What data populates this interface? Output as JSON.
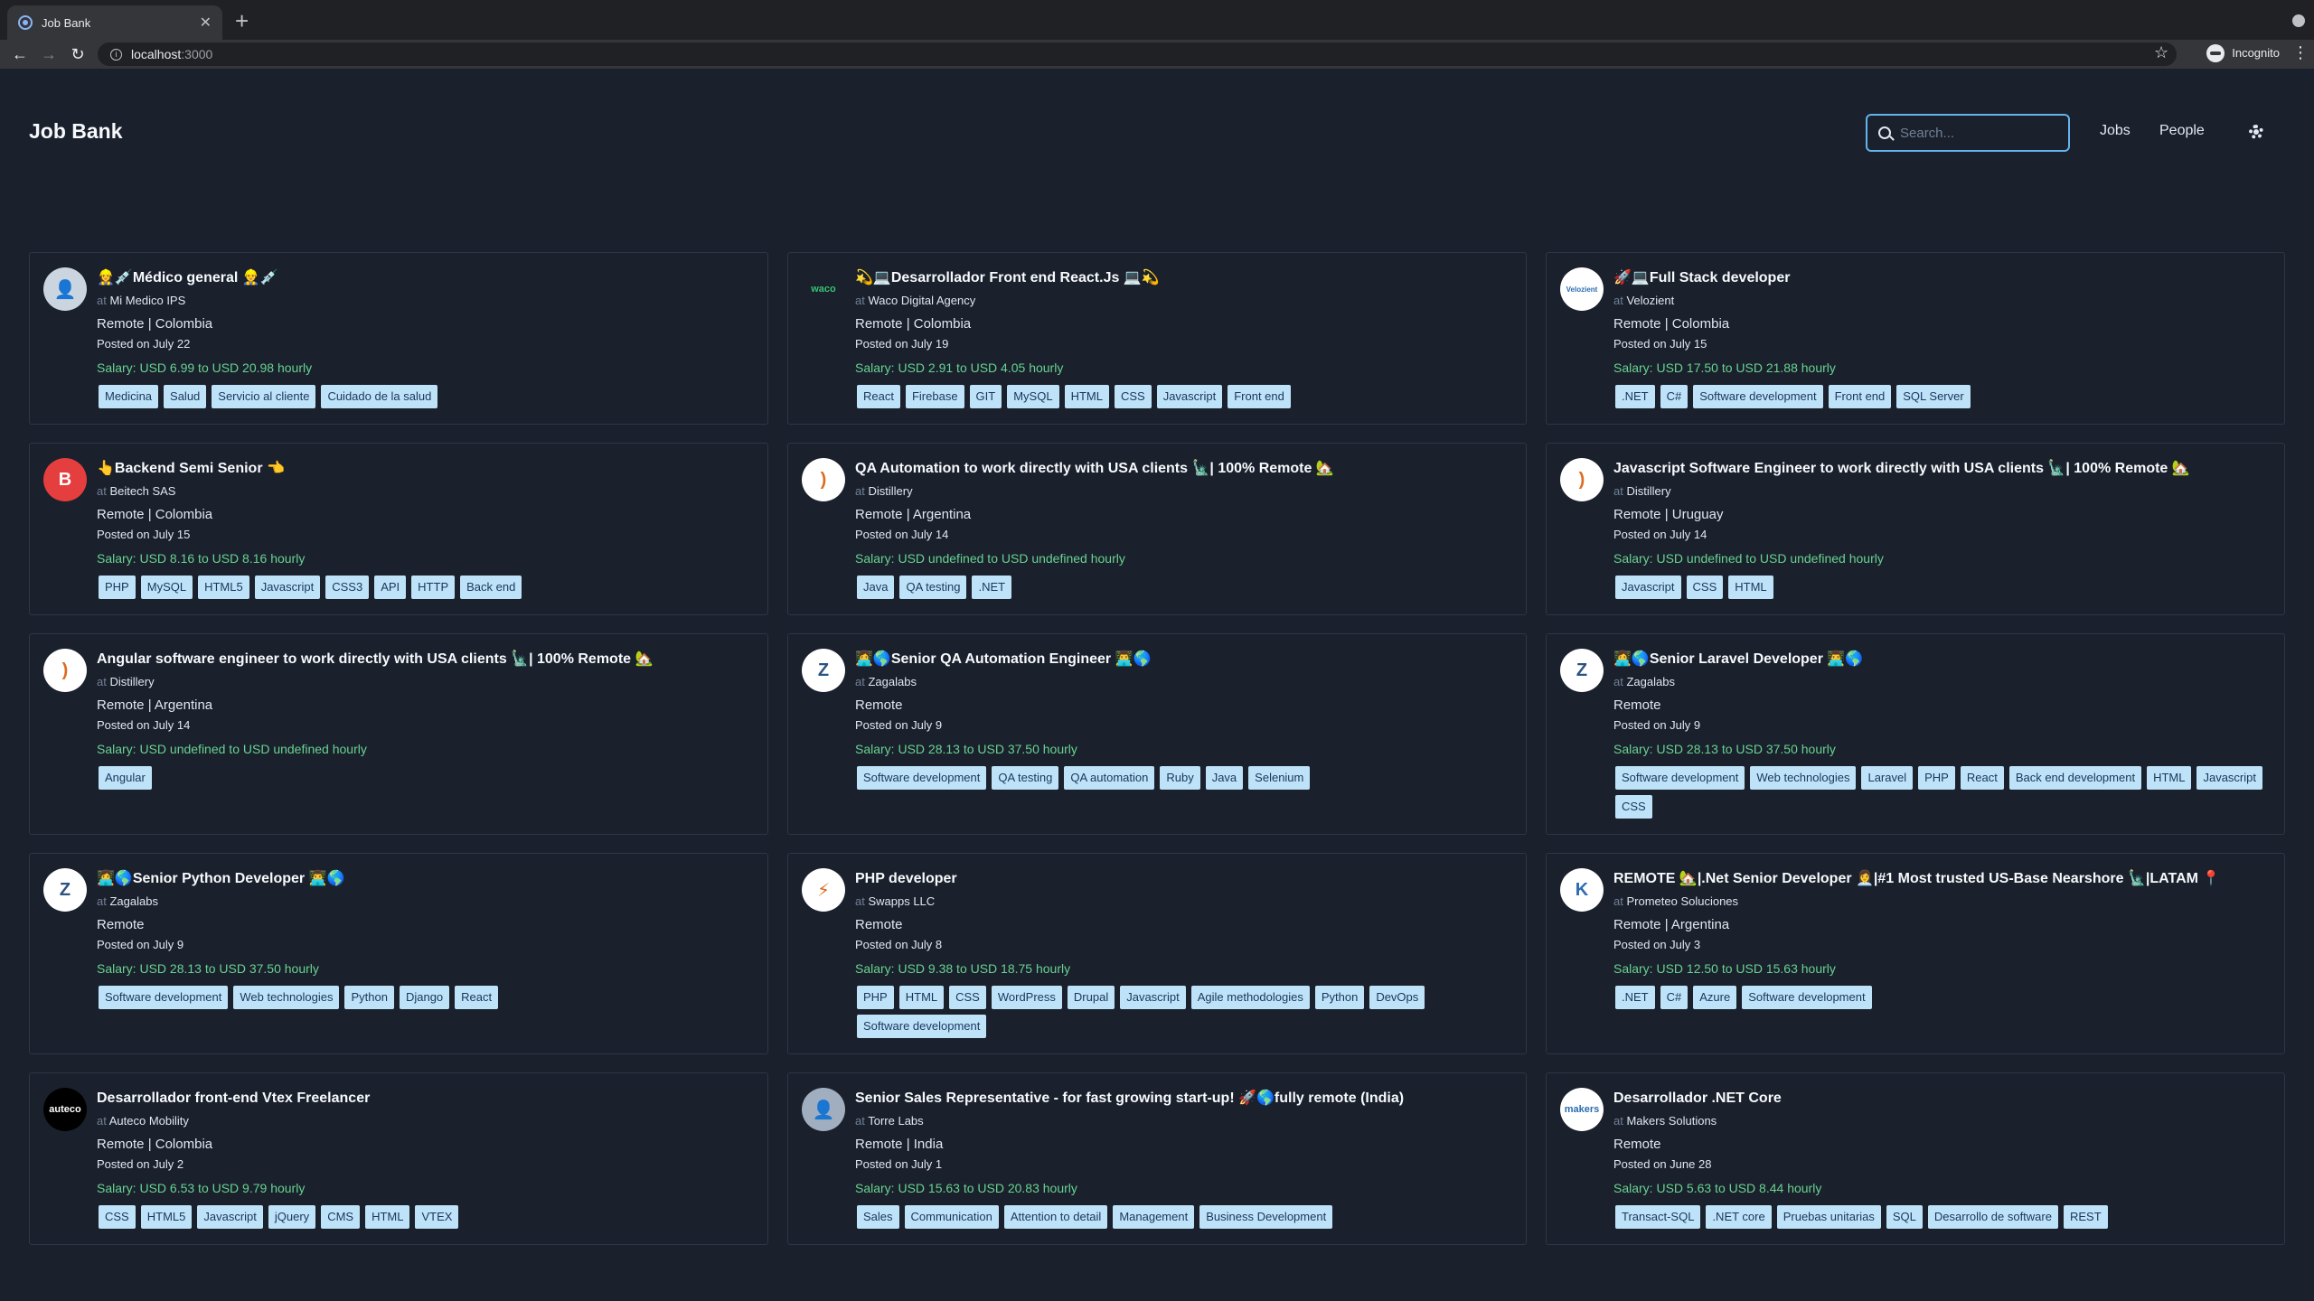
{
  "browser": {
    "tab_title": "Job Bank",
    "url_host": "localhost",
    "url_port": ":3000",
    "profile_label": "Incognito"
  },
  "app": {
    "title": "Job Bank",
    "search_placeholder": "Search...",
    "nav": {
      "jobs": "Jobs",
      "people": "People"
    }
  },
  "at_label": "at",
  "jobs": [
    {
      "title": "👷‍♀️💉Médico general 👷‍♂️💉",
      "company": "Mi Medico IPS",
      "location": "Remote | Colombia",
      "posted": "Posted on July 22",
      "salary": "Salary: USD 6.99 to USD 20.98 hourly",
      "tags": [
        "Medicina",
        "Salud",
        "Servicio al cliente",
        "Cuidado de la salud"
      ],
      "avatar": {
        "text": "👤",
        "bg": "#cbd5e0",
        "fg": "#4a5568"
      }
    },
    {
      "title": "💫💻Desarrollador Front end React.Js 💻💫",
      "company": "Waco Digital Agency",
      "location": "Remote | Colombia",
      "posted": "Posted on July 19",
      "salary": "Salary: USD 2.91 to USD 4.05 hourly",
      "tags": [
        "React",
        "Firebase",
        "GIT",
        "MySQL",
        "HTML",
        "CSS",
        "Javascript",
        "Front end"
      ],
      "avatar": {
        "text": "waco",
        "bg": "#1a202c",
        "fg": "#38c172"
      }
    },
    {
      "title": "🚀💻Full Stack developer",
      "company": "Velozient",
      "location": "Remote | Colombia",
      "posted": "Posted on July 15",
      "salary": "Salary: USD 17.50 to USD 21.88 hourly",
      "tags": [
        ".NET",
        "C#",
        "Software development",
        "Front end",
        "SQL Server"
      ],
      "avatar": {
        "text": "Velozient",
        "bg": "#ffffff",
        "fg": "#2b6cb0"
      }
    },
    {
      "title": "👆Backend Semi Senior 👈",
      "company": "Beitech SAS",
      "location": "Remote | Colombia",
      "posted": "Posted on July 15",
      "salary": "Salary: USD 8.16 to USD 8.16 hourly",
      "tags": [
        "PHP",
        "MySQL",
        "HTML5",
        "Javascript",
        "CSS3",
        "API",
        "HTTP",
        "Back end"
      ],
      "avatar": {
        "text": "B",
        "bg": "#e53e3e",
        "fg": "#ffffff"
      }
    },
    {
      "title": "QA Automation to work directly with USA clients 🗽| 100% Remote 🏡",
      "company": "Distillery",
      "location": "Remote | Argentina",
      "posted": "Posted on July 14",
      "salary": "Salary: USD undefined to USD undefined hourly",
      "tags": [
        "Java",
        "QA testing",
        ".NET"
      ],
      "avatar": {
        "text": ")",
        "bg": "#ffffff",
        "fg": "#dd6b20"
      }
    },
    {
      "title": "Javascript Software Engineer to work directly with USA clients 🗽| 100% Remote 🏡",
      "company": "Distillery",
      "location": "Remote | Uruguay",
      "posted": "Posted on July 14",
      "salary": "Salary: USD undefined to USD undefined hourly",
      "tags": [
        "Javascript",
        "CSS",
        "HTML"
      ],
      "avatar": {
        "text": ")",
        "bg": "#ffffff",
        "fg": "#dd6b20"
      }
    },
    {
      "title": "Angular software engineer to work directly with USA clients 🗽| 100% Remote 🏡",
      "company": "Distillery",
      "location": "Remote | Argentina",
      "posted": "Posted on July 14",
      "salary": "Salary: USD undefined to USD undefined hourly",
      "tags": [
        "Angular"
      ],
      "avatar": {
        "text": ")",
        "bg": "#ffffff",
        "fg": "#dd6b20"
      }
    },
    {
      "title": "👩‍💻🌎Senior QA Automation Engineer 👨‍💻🌎",
      "company": "Zagalabs",
      "location": "Remote",
      "posted": "Posted on July 9",
      "salary": "Salary: USD 28.13 to USD 37.50 hourly",
      "tags": [
        "Software development",
        "QA testing",
        "QA automation",
        "Ruby",
        "Java",
        "Selenium"
      ],
      "avatar": {
        "text": "Z",
        "bg": "#ffffff",
        "fg": "#2c5282"
      }
    },
    {
      "title": "👩‍💻🌎Senior Laravel Developer 👨‍💻🌎",
      "company": "Zagalabs",
      "location": "Remote",
      "posted": "Posted on July 9",
      "salary": "Salary: USD 28.13 to USD 37.50 hourly",
      "tags": [
        "Software development",
        "Web technologies",
        "Laravel",
        "PHP",
        "React",
        "Back end development",
        "HTML",
        "Javascript",
        "CSS"
      ],
      "avatar": {
        "text": "Z",
        "bg": "#ffffff",
        "fg": "#2c5282"
      }
    },
    {
      "title": "👩‍💻🌎Senior Python Developer 👨‍💻🌎",
      "company": "Zagalabs",
      "location": "Remote",
      "posted": "Posted on July 9",
      "salary": "Salary: USD 28.13 to USD 37.50 hourly",
      "tags": [
        "Software development",
        "Web technologies",
        "Python",
        "Django",
        "React"
      ],
      "avatar": {
        "text": "Z",
        "bg": "#ffffff",
        "fg": "#2c5282"
      }
    },
    {
      "title": "PHP developer",
      "company": "Swapps LLC",
      "location": "Remote",
      "posted": "Posted on July 8",
      "salary": "Salary: USD 9.38 to USD 18.75 hourly",
      "tags": [
        "PHP",
        "HTML",
        "CSS",
        "WordPress",
        "Drupal",
        "Javascript",
        "Agile methodologies",
        "Python",
        "DevOps",
        "Software development"
      ],
      "avatar": {
        "text": "⚡",
        "bg": "#ffffff",
        "fg": "#dd6b20"
      }
    },
    {
      "title": "REMOTE 🏡|.Net Senior Developer 👩‍💼|#1 Most trusted US-Base Nearshore 🗽|LATAM 📍",
      "company": "Prometeo Soluciones",
      "location": "Remote | Argentina",
      "posted": "Posted on July 3",
      "salary": "Salary: USD 12.50 to USD 15.63 hourly",
      "tags": [
        ".NET",
        "C#",
        "Azure",
        "Software development"
      ],
      "avatar": {
        "text": "K",
        "bg": "#ffffff",
        "fg": "#2b6cb0"
      }
    },
    {
      "title": "Desarrollador front-end Vtex Freelancer",
      "company": "Auteco Mobility",
      "location": "Remote | Colombia",
      "posted": "Posted on July 2",
      "salary": "Salary: USD 6.53 to USD 9.79 hourly",
      "tags": [
        "CSS",
        "HTML5",
        "Javascript",
        "jQuery",
        "CMS",
        "HTML",
        "VTEX"
      ],
      "avatar": {
        "text": "auteco",
        "bg": "#000000",
        "fg": "#ffffff"
      }
    },
    {
      "title": "Senior Sales Representative - for fast growing start-up! 🚀🌎fully remote (India)",
      "company": "Torre Labs",
      "location": "Remote | India",
      "posted": "Posted on July 1",
      "salary": "Salary: USD 15.63 to USD 20.83 hourly",
      "tags": [
        "Sales",
        "Communication",
        "Attention to detail",
        "Management",
        "Business Development"
      ],
      "avatar": {
        "text": "👤",
        "bg": "#a0aec0",
        "fg": "#2d3748"
      }
    },
    {
      "title": "Desarrollador .NET Core",
      "company": "Makers Solutions",
      "location": "Remote",
      "posted": "Posted on June 28",
      "salary": "Salary: USD 5.63 to USD 8.44 hourly",
      "tags": [
        "Transact-SQL",
        ".NET core",
        "Pruebas unitarias",
        "SQL",
        "Desarrollo de software",
        "REST"
      ],
      "avatar": {
        "text": "makers",
        "bg": "#ffffff",
        "fg": "#2b6cb0"
      }
    }
  ]
}
